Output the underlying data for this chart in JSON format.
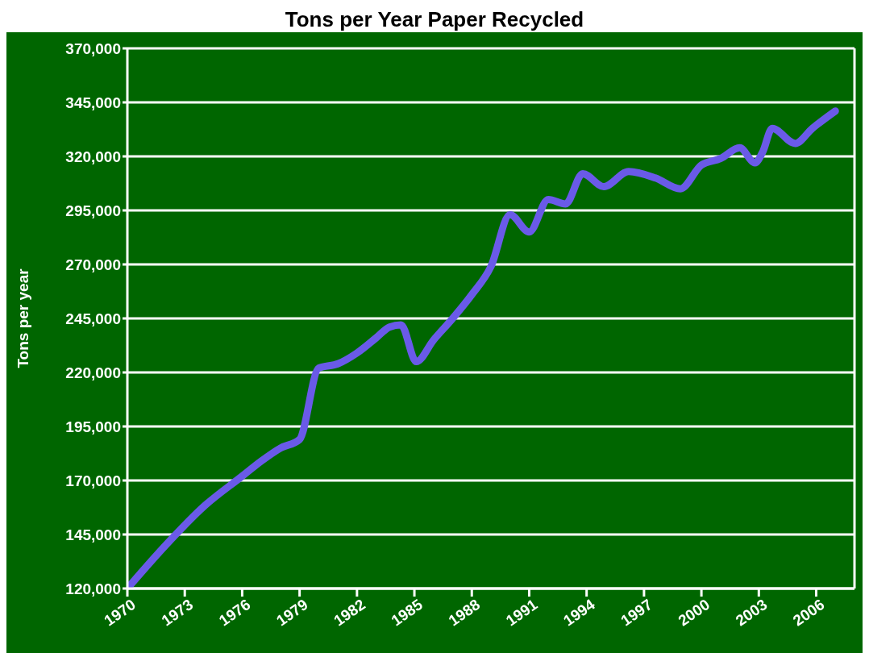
{
  "chart_data": {
    "type": "line",
    "title": "Tons per Year Paper Recycled",
    "ylabel": "Tons per year",
    "x": [
      1970,
      1972,
      1974,
      1976,
      1977,
      1978,
      1979,
      1980,
      1981,
      1982,
      1983,
      1983.7,
      1984.3,
      1985.1,
      1986,
      1987,
      1988,
      1989,
      1990,
      1991,
      1992,
      1992.9,
      1993.8,
      1994.9,
      1996.2,
      1997.6,
      1998.9,
      2000,
      2001,
      2002,
      2002.8,
      2003.2,
      2003.7,
      2004.9,
      2005.8,
      2007
    ],
    "series": [
      {
        "color": "#6a5ae8",
        "values": [
          120000,
          140000,
          158000,
          172000,
          179000,
          185000,
          189000,
          222000,
          224000,
          229000,
          236000,
          241000,
          242000,
          225000,
          235000,
          245000,
          256000,
          269000,
          293000,
          285000,
          300000,
          298000,
          312000,
          306000,
          313000,
          310000,
          305000,
          316000,
          319000,
          324000,
          317000,
          322000,
          333000,
          326000,
          333000,
          341000
        ]
      }
    ],
    "xlim": [
      1970,
      2008
    ],
    "xticks": [
      1970,
      1973,
      1976,
      1979,
      1982,
      1985,
      1988,
      1991,
      1994,
      1997,
      2000,
      2003,
      2006
    ],
    "ylim": [
      120000,
      370000
    ],
    "yticks": [
      {
        "value": 120000,
        "label": "120,000"
      },
      {
        "value": 145000,
        "label": "145,000"
      },
      {
        "value": 170000,
        "label": "170,000"
      },
      {
        "value": 195000,
        "label": "195,000"
      },
      {
        "value": 220000,
        "label": "220,000"
      },
      {
        "value": 245000,
        "label": "245,000"
      },
      {
        "value": 270000,
        "label": "270,000"
      },
      {
        "value": 295000,
        "label": "295,000"
      },
      {
        "value": 320000,
        "label": "320,000"
      },
      {
        "value": 345000,
        "label": "345,000"
      },
      {
        "value": 370000,
        "label": "370,000"
      }
    ],
    "grid": "y",
    "legend": false,
    "marker": "none",
    "line_style": "solid"
  }
}
